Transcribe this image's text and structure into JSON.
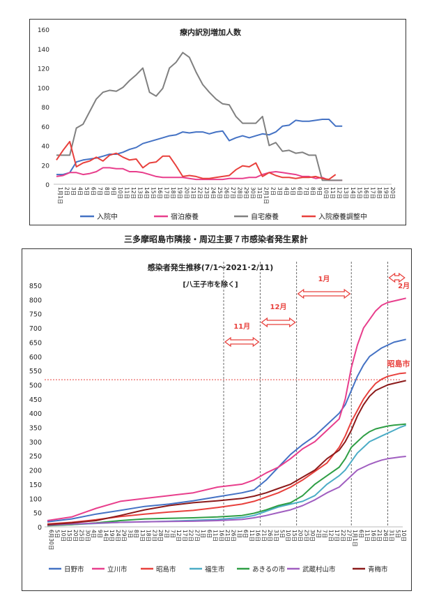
{
  "page": {
    "mid_caption": "三多摩昭島市隣接・周辺主要７市感染者発生累計"
  },
  "chart_data": [
    {
      "type": "line",
      "title": "療内訳別増加人数",
      "ylim": [
        0,
        160
      ],
      "yticks": [
        0,
        20,
        40,
        60,
        80,
        100,
        120,
        140,
        160
      ],
      "x_tick_labels": [
        "1月1日",
        "2日",
        "3日",
        "4日",
        "5日",
        "6日",
        "7日",
        "8日",
        "9日",
        "10日",
        "11日",
        "12日",
        "13日",
        "14日",
        "15日",
        "16日",
        "17日",
        "18日",
        "19日",
        "20日",
        "21日",
        "22日",
        "23日",
        "24日",
        "25日",
        "26日",
        "27日",
        "28日",
        "29日",
        "30日",
        "31日",
        "2月1日",
        "2日",
        "3日",
        "4日",
        "5日",
        "6日",
        "7日",
        "8日",
        "9日",
        "10日",
        "11日",
        "12日",
        "13日",
        "14日",
        "15日",
        "16日",
        "17日",
        "18日",
        "19日",
        "20日"
      ],
      "grid": false,
      "legend_position": "bottom",
      "series": [
        {
          "name": "入院中",
          "color": "#4472c4",
          "values": [
            10,
            10,
            12,
            23,
            25,
            26,
            27,
            29,
            31,
            31,
            33,
            36,
            38,
            42,
            44,
            46,
            48,
            50,
            51,
            54,
            53,
            54,
            54,
            52,
            54,
            55,
            45,
            48,
            50,
            48,
            50,
            52,
            51,
            54,
            60,
            61,
            66,
            65,
            65,
            66,
            67,
            67,
            60,
            60
          ]
        },
        {
          "name": "宿泊療養",
          "color": "#e83e8c",
          "values": [
            8,
            9,
            12,
            12,
            10,
            11,
            13,
            17,
            17,
            16,
            16,
            13,
            13,
            12,
            10,
            8,
            7,
            7,
            7,
            7,
            6,
            5,
            5,
            5,
            5,
            5,
            6,
            6,
            6,
            7,
            7,
            10,
            12,
            13,
            12,
            11,
            10,
            8,
            8,
            6,
            7,
            4,
            4,
            4
          ]
        },
        {
          "name": "自宅療養",
          "color": "#808080",
          "values": [
            30,
            30,
            30,
            58,
            62,
            75,
            88,
            95,
            97,
            96,
            100,
            107,
            113,
            120,
            95,
            91,
            99,
            120,
            126,
            136,
            131,
            116,
            103,
            95,
            88,
            83,
            82,
            70,
            63,
            63,
            63,
            70,
            40,
            43,
            34,
            35,
            32,
            33,
            30,
            30,
            4,
            4,
            4,
            4
          ]
        },
        {
          "name": "入院療養調整中",
          "color": "#e8403c",
          "values": [
            25,
            35,
            44,
            18,
            22,
            24,
            28,
            24,
            30,
            32,
            28,
            25,
            26,
            17,
            22,
            23,
            29,
            29,
            19,
            8,
            9,
            8,
            6,
            6,
            7,
            8,
            9,
            15,
            19,
            18,
            22,
            8,
            12,
            9,
            7,
            7,
            6,
            7,
            7,
            8,
            6,
            5,
            10
          ]
        }
      ]
    },
    {
      "type": "line",
      "title": "感染者発生推移(7/1～2021･2/11)",
      "subtitle": "[八王子市を除く]",
      "ylim": [
        0,
        850
      ],
      "yticks": [
        0,
        50,
        100,
        150,
        200,
        250,
        300,
        350,
        400,
        450,
        500,
        550,
        600,
        650,
        700,
        750,
        800,
        850
      ],
      "x_tick_labels": [
        "6月30日",
        "5日",
        "10日",
        "15日",
        "20日",
        "25日",
        "30日",
        "4日",
        "9日",
        "14日",
        "19日",
        "24日",
        "29日",
        "3日",
        "8日",
        "13日",
        "18日",
        "23日",
        "28日",
        "2日",
        "7日",
        "12日",
        "17日",
        "22日",
        "27日",
        "1日",
        "6日",
        "11日",
        "16日",
        "21日",
        "26日",
        "1日",
        "6日",
        "11日",
        "16日",
        "21日",
        "26日",
        "31日",
        "5日",
        "10日",
        "15日",
        "20日",
        "25日",
        "30日",
        "2日",
        "7日",
        "12日",
        "17日",
        "22日",
        "27日",
        "1月1日",
        "6日",
        "11日",
        "16日",
        "21日",
        "26日",
        "31日",
        "5日",
        "10日"
      ],
      "grid": false,
      "legend_position": "bottom",
      "annotations": [
        {
          "label": "11月",
          "x_index": 34
        },
        {
          "label": "12月",
          "x_index": 40
        },
        {
          "label": "1月",
          "x_index": 48
        },
        {
          "label": "2月",
          "x_index": 56
        },
        {
          "label": "昭島市",
          "color": "#e8403c"
        }
      ],
      "reference_line": {
        "y": 518,
        "color": "#e8403c",
        "style": "dotted"
      },
      "month_dividers_x_index": [
        29,
        35,
        41,
        50,
        56
      ],
      "series": [
        {
          "name": "日野市",
          "color": "#4472c4",
          "x": [
            0,
            4,
            8,
            12,
            16,
            20,
            24,
            28,
            32,
            34,
            36,
            38,
            40,
            42,
            44,
            46,
            48,
            49,
            50,
            51,
            52,
            53,
            54,
            55,
            56,
            57,
            58,
            59
          ],
          "values": [
            18,
            28,
            45,
            58,
            72,
            80,
            92,
            106,
            120,
            130,
            165,
            210,
            255,
            290,
            320,
            360,
            400,
            430,
            480,
            530,
            570,
            600,
            615,
            630,
            640,
            650,
            655,
            660
          ]
        },
        {
          "name": "立川市",
          "color": "#e83e8c",
          "x": [
            0,
            4,
            8,
            12,
            16,
            20,
            24,
            28,
            32,
            34,
            36,
            38,
            40,
            42,
            44,
            46,
            48,
            49,
            50,
            51,
            52,
            53,
            54,
            55,
            56,
            57,
            58,
            59
          ],
          "values": [
            22,
            35,
            65,
            90,
            100,
            110,
            120,
            140,
            150,
            165,
            190,
            210,
            240,
            275,
            300,
            340,
            380,
            450,
            560,
            640,
            700,
            730,
            760,
            780,
            790,
            795,
            800,
            805
          ]
        },
        {
          "name": "昭島市",
          "color": "#e8403c",
          "x": [
            0,
            4,
            8,
            12,
            16,
            20,
            24,
            28,
            32,
            34,
            36,
            38,
            40,
            42,
            44,
            46,
            48,
            49,
            50,
            51,
            52,
            53,
            54,
            55,
            56,
            57,
            58,
            59
          ],
          "values": [
            10,
            16,
            25,
            36,
            45,
            52,
            58,
            68,
            80,
            90,
            105,
            120,
            140,
            165,
            195,
            225,
            280,
            320,
            370,
            410,
            450,
            480,
            505,
            520,
            530,
            535,
            540,
            542
          ]
        },
        {
          "name": "福生市",
          "color": "#4bacc6",
          "x": [
            0,
            4,
            8,
            12,
            16,
            20,
            24,
            28,
            32,
            34,
            36,
            38,
            40,
            42,
            44,
            46,
            48,
            49,
            50,
            51,
            52,
            53,
            54,
            55,
            56,
            57,
            58,
            59
          ],
          "values": [
            5,
            8,
            12,
            16,
            18,
            20,
            23,
            26,
            33,
            40,
            55,
            70,
            80,
            90,
            110,
            150,
            180,
            200,
            230,
            260,
            280,
            300,
            310,
            320,
            330,
            340,
            350,
            358
          ]
        },
        {
          "name": "あきるの市",
          "color": "#2e9e44",
          "x": [
            0,
            4,
            8,
            12,
            16,
            20,
            24,
            28,
            32,
            34,
            36,
            38,
            40,
            42,
            44,
            46,
            48,
            49,
            50,
            51,
            52,
            53,
            54,
            55,
            56,
            57,
            58,
            59
          ],
          "values": [
            4,
            8,
            14,
            22,
            28,
            30,
            32,
            35,
            40,
            48,
            60,
            75,
            85,
            110,
            150,
            180,
            210,
            240,
            280,
            300,
            320,
            335,
            345,
            350,
            355,
            358,
            360,
            362
          ]
        },
        {
          "name": "武蔵村山市",
          "color": "#a05ec0",
          "x": [
            0,
            4,
            8,
            12,
            16,
            20,
            24,
            28,
            32,
            34,
            36,
            38,
            40,
            42,
            44,
            46,
            48,
            49,
            50,
            51,
            52,
            53,
            54,
            55,
            56,
            57,
            58,
            59
          ],
          "values": [
            6,
            10,
            13,
            16,
            18,
            19,
            20,
            22,
            26,
            32,
            40,
            50,
            60,
            75,
            95,
            120,
            140,
            160,
            180,
            200,
            210,
            220,
            228,
            235,
            240,
            243,
            246,
            248
          ]
        },
        {
          "name": "青梅市",
          "color": "#8b1a1a",
          "x": [
            0,
            4,
            8,
            12,
            16,
            20,
            24,
            28,
            32,
            34,
            36,
            38,
            40,
            42,
            44,
            46,
            48,
            49,
            50,
            51,
            52,
            53,
            54,
            55,
            56,
            57,
            58,
            59
          ],
          "values": [
            8,
            14,
            22,
            40,
            60,
            75,
            85,
            92,
            100,
            108,
            120,
            135,
            150,
            175,
            200,
            240,
            270,
            300,
            340,
            390,
            430,
            460,
            480,
            490,
            500,
            505,
            510,
            515
          ]
        }
      ]
    }
  ]
}
